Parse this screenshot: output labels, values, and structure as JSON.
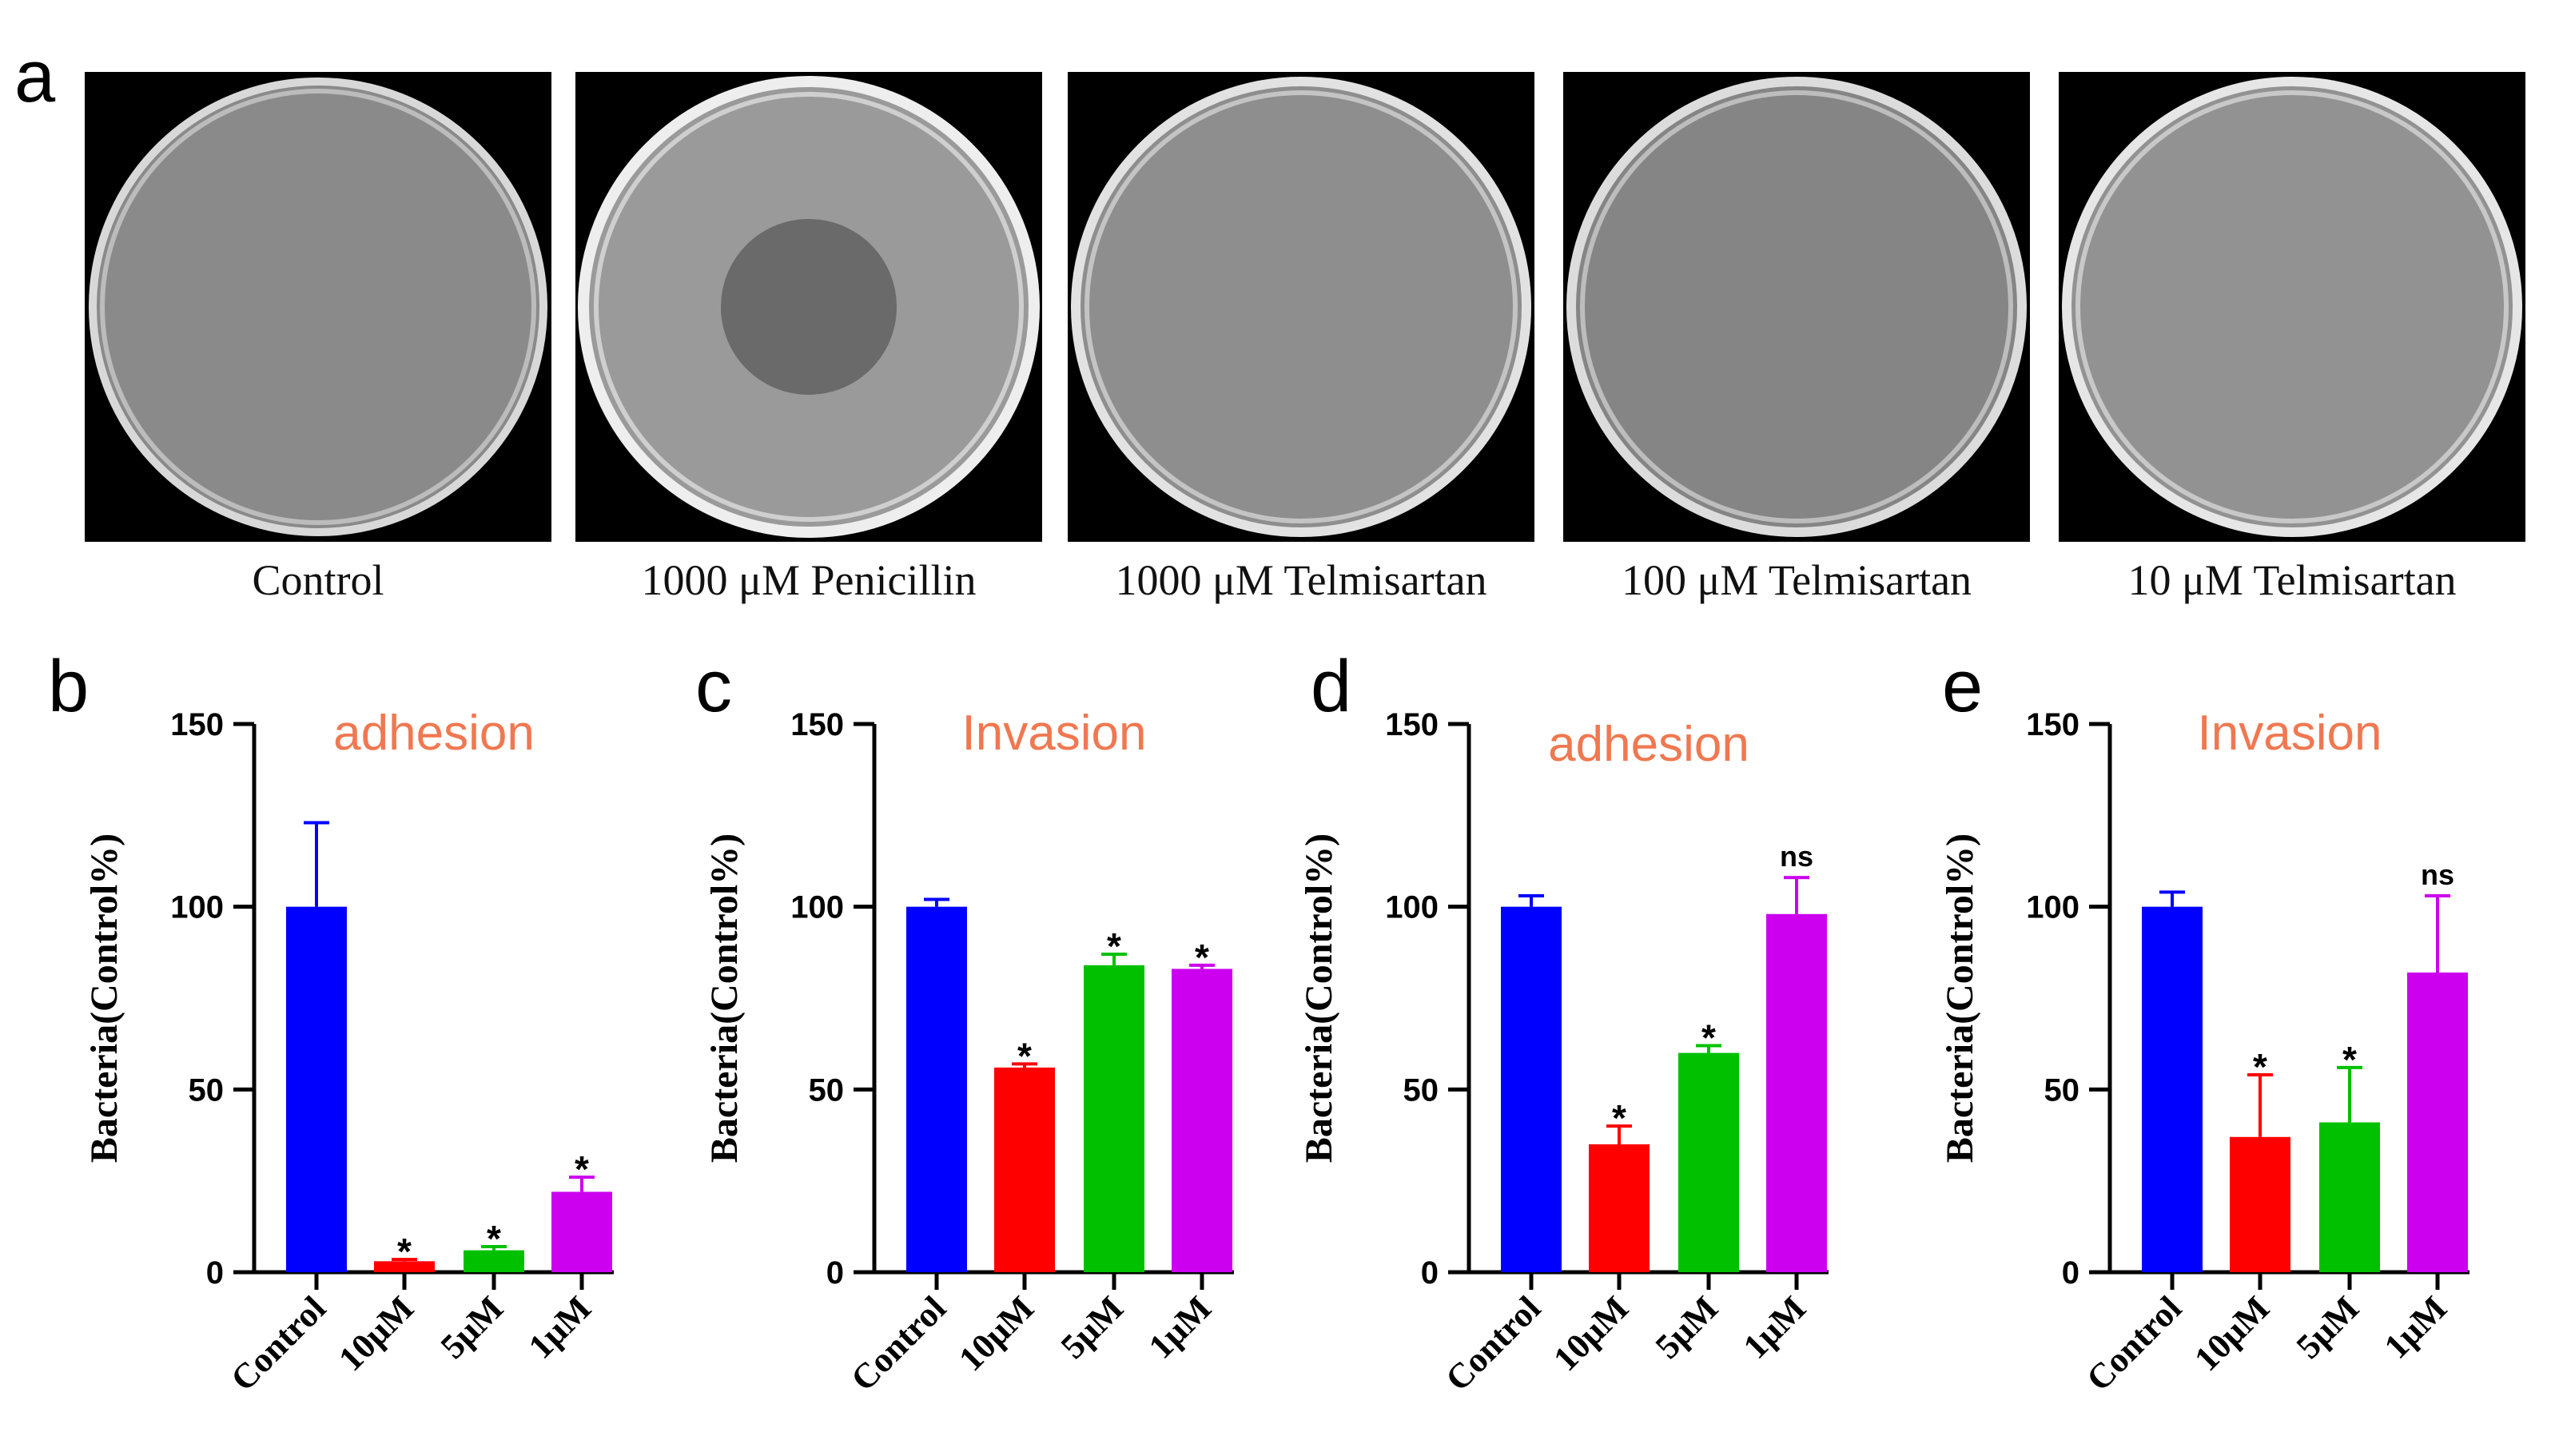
{
  "panel_a": {
    "letter": "a",
    "plates": [
      {
        "label": "Control",
        "zone": "none"
      },
      {
        "label": "1000 μM Penicillin",
        "zone": "inhibition"
      },
      {
        "label": "1000 μM Telmisartan",
        "zone": "none"
      },
      {
        "label": "100 μM Telmisartan",
        "zone": "none"
      },
      {
        "label": "10 μM Telmisartan",
        "zone": "none"
      }
    ]
  },
  "colors": {
    "control": "#0000ff",
    "10uM": "#ff0000",
    "5uM": "#00c000",
    "1uM": "#cc00ee",
    "title": "#f07850"
  },
  "chart_data": [
    {
      "panel": "b",
      "type": "bar",
      "title": "adhesion",
      "ylabel": "Bacteria(Control%)",
      "categories": [
        "Control",
        "10μM",
        "5μM",
        "1μM"
      ],
      "values": [
        100,
        3,
        6,
        22
      ],
      "errors": [
        23,
        0.5,
        1,
        4
      ],
      "significance": [
        "",
        "*",
        "*",
        "*"
      ],
      "ylim": [
        0,
        150
      ],
      "yticks": [
        0,
        50,
        100,
        150
      ]
    },
    {
      "panel": "c",
      "type": "bar",
      "title": "Invasion",
      "ylabel": "Bacteria(Control%)",
      "categories": [
        "Control",
        "10μM",
        "5μM",
        "1μM"
      ],
      "values": [
        100,
        56,
        84,
        83
      ],
      "errors": [
        2,
        1,
        3,
        1
      ],
      "significance": [
        "",
        "*",
        "*",
        "*"
      ],
      "ylim": [
        0,
        150
      ],
      "yticks": [
        0,
        50,
        100,
        150
      ]
    },
    {
      "panel": "d",
      "type": "bar",
      "title": "adhesion",
      "ylabel": "Bacteria(Control%)",
      "categories": [
        "Control",
        "10μM",
        "5μM",
        "1μM"
      ],
      "values": [
        100,
        35,
        60,
        98
      ],
      "errors": [
        3,
        5,
        2,
        10
      ],
      "significance": [
        "",
        "*",
        "*",
        "ns"
      ],
      "ylim": [
        0,
        150
      ],
      "yticks": [
        0,
        50,
        100,
        150
      ]
    },
    {
      "panel": "e",
      "type": "bar",
      "title": "Invasion",
      "ylabel": "Bacteria(Control%)",
      "categories": [
        "Control",
        "10μM",
        "5μM",
        "1μM"
      ],
      "values": [
        100,
        37,
        41,
        82
      ],
      "errors": [
        4,
        17,
        15,
        21
      ],
      "significance": [
        "",
        "*",
        "*",
        "ns"
      ],
      "ylim": [
        0,
        150
      ],
      "yticks": [
        0,
        50,
        100,
        150
      ]
    }
  ]
}
